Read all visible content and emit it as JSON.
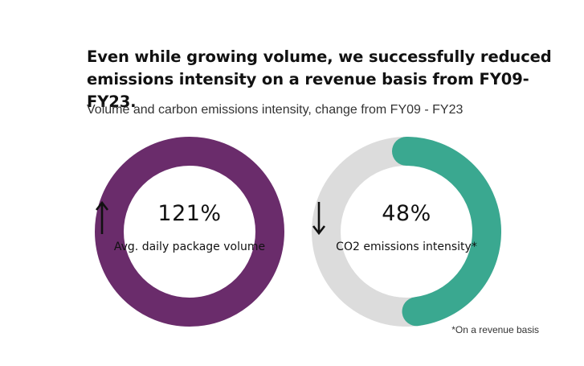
{
  "title": "Even while growing volume, we successfully reduced emissions intensity on a revenue basis from FY09-FY23.",
  "subtitle": "Volume and carbon emissions intensity, change from FY09 - FY23",
  "footnote": "*On a revenue basis",
  "colors": {
    "volume_ring": "#6a2c6b",
    "emissions_fill": "#3aa890",
    "ring_track": "#dcdcdc",
    "text": "#111111"
  },
  "chart_data": [
    {
      "type": "pie",
      "variant": "donut",
      "metric": "Avg. daily package volume",
      "change_percent": 121,
      "direction": "up",
      "value_label": "121%",
      "caption": "Avg. daily package volume",
      "ring_fill_fraction": 1.0,
      "arrow_icon": "arrow-up-icon"
    },
    {
      "type": "pie",
      "variant": "donut",
      "metric": "CO2 emissions intensity*",
      "change_percent": -48,
      "direction": "down",
      "value_label": "48%",
      "caption": "CO2 emissions intensity*",
      "ring_fill_fraction": 0.48,
      "arrow_icon": "arrow-down-icon"
    }
  ]
}
